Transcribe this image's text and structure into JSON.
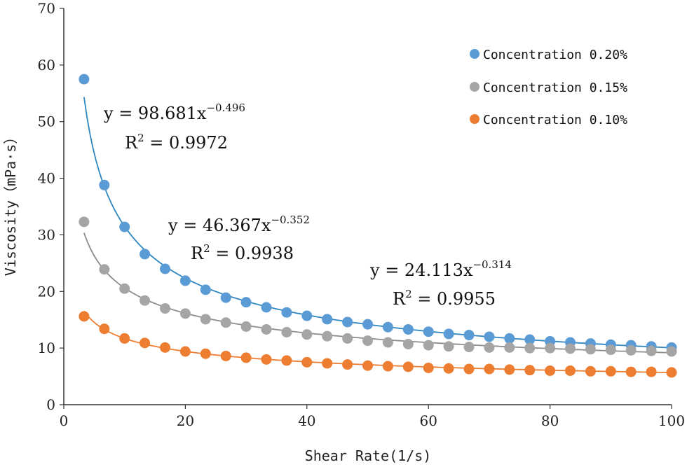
{
  "chart_data": {
    "type": "scatter",
    "xlabel": "Shear Rate(1/s)",
    "ylabel": "Viscosity（mPa·s）",
    "xlim": [
      0,
      100
    ],
    "ylim": [
      0,
      70
    ],
    "xticks": [
      "0",
      "20",
      "40",
      "60",
      "80",
      "100"
    ],
    "yticks": [
      "0",
      "10",
      "20",
      "30",
      "40",
      "50",
      "60",
      "70"
    ],
    "grid": false,
    "legend_position": "top-right",
    "series": [
      {
        "name": "Concentration 0.20%",
        "color": "#5B9BD5",
        "trend_color": "#2E86C1",
        "fit": {
          "a": 98.681,
          "b": -0.496
        },
        "x": [
          3.33,
          6.67,
          10,
          13.33,
          16.67,
          20,
          23.33,
          26.67,
          30,
          33.33,
          36.67,
          40,
          43.33,
          46.67,
          50,
          53.33,
          56.67,
          60,
          63.33,
          66.67,
          70,
          73.33,
          76.67,
          80,
          83.33,
          86.67,
          90,
          93.33,
          96.67,
          100
        ],
        "y": [
          57.5,
          38.8,
          31.4,
          26.6,
          24.0,
          21.9,
          20.3,
          18.9,
          18.1,
          17.2,
          16.3,
          15.7,
          15.1,
          14.6,
          14.2,
          13.7,
          13.3,
          12.9,
          12.5,
          12.3,
          12.0,
          11.7,
          11.5,
          11.2,
          11.0,
          10.8,
          10.6,
          10.5,
          10.3,
          10.1
        ]
      },
      {
        "name": "Concentration 0.15%",
        "color": "#A5A5A5",
        "trend_color": "#8C8C8C",
        "fit": {
          "a": 46.367,
          "b": -0.352
        },
        "x": [
          3.33,
          6.67,
          10,
          13.33,
          16.67,
          20,
          23.33,
          26.67,
          30,
          33.33,
          36.67,
          40,
          43.33,
          46.67,
          50,
          53.33,
          56.67,
          60,
          63.33,
          66.67,
          70,
          73.33,
          76.67,
          80,
          83.33,
          86.67,
          90,
          93.33,
          96.67,
          100
        ],
        "y": [
          32.3,
          23.9,
          20.5,
          18.4,
          17.0,
          16.1,
          15.1,
          14.5,
          13.8,
          13.3,
          12.8,
          12.4,
          12.1,
          11.7,
          11.3,
          11.0,
          10.7,
          10.5,
          10.3,
          10.2,
          10.1,
          10.1,
          10.0,
          10.0,
          9.9,
          9.8,
          9.7,
          9.6,
          9.5,
          9.4
        ]
      },
      {
        "name": "Concentration 0.10%",
        "color": "#ED7D31",
        "trend_color": "#ED7D31",
        "fit": {
          "a": 24.113,
          "b": -0.314
        },
        "x": [
          3.33,
          6.67,
          10,
          13.33,
          16.67,
          20,
          23.33,
          26.67,
          30,
          33.33,
          36.67,
          40,
          43.33,
          46.67,
          50,
          53.33,
          56.67,
          60,
          63.33,
          66.67,
          70,
          73.33,
          76.67,
          80,
          83.33,
          86.67,
          90,
          93.33,
          96.67,
          100
        ],
        "y": [
          15.6,
          13.4,
          11.7,
          10.9,
          10.1,
          9.4,
          9.0,
          8.6,
          8.3,
          8.0,
          7.8,
          7.5,
          7.3,
          7.1,
          6.9,
          6.8,
          6.7,
          6.5,
          6.4,
          6.3,
          6.3,
          6.2,
          6.1,
          6.0,
          6.0,
          5.9,
          5.9,
          5.8,
          5.8,
          5.7
        ]
      }
    ],
    "annotations": [
      {
        "eq_prefix": "y = 98.681x",
        "exponent": "−0.496",
        "r2_prefix": "R",
        "r2_sup": "2",
        "r2_value": " = 0.9972"
      },
      {
        "eq_prefix": "y = 46.367x",
        "exponent": "−0.352",
        "r2_prefix": "R",
        "r2_sup": "2",
        "r2_value": " = 0.9938"
      },
      {
        "eq_prefix": "y = 24.113x",
        "exponent": "−0.314",
        "r2_prefix": "R",
        "r2_sup": "2",
        "r2_value": " = 0.9955"
      }
    ]
  }
}
